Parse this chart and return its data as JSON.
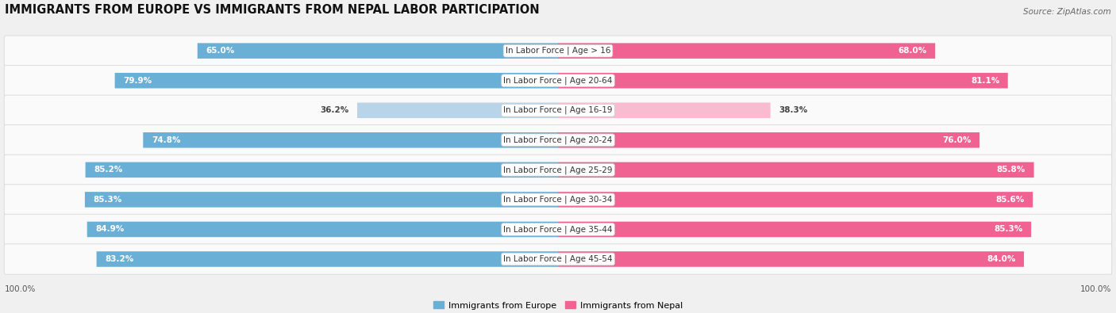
{
  "title": "IMMIGRANTS FROM EUROPE VS IMMIGRANTS FROM NEPAL LABOR PARTICIPATION",
  "source": "Source: ZipAtlas.com",
  "categories": [
    "In Labor Force | Age > 16",
    "In Labor Force | Age 20-64",
    "In Labor Force | Age 16-19",
    "In Labor Force | Age 20-24",
    "In Labor Force | Age 25-29",
    "In Labor Force | Age 30-34",
    "In Labor Force | Age 35-44",
    "In Labor Force | Age 45-54"
  ],
  "europe_values": [
    65.0,
    79.9,
    36.2,
    74.8,
    85.2,
    85.3,
    84.9,
    83.2
  ],
  "nepal_values": [
    68.0,
    81.1,
    38.3,
    76.0,
    85.8,
    85.6,
    85.3,
    84.0
  ],
  "europe_color": "#6aafd6",
  "nepal_color": "#f06292",
  "europe_color_light": "#b8d4e8",
  "nepal_color_light": "#f8bbd0",
  "background_color": "#f0f0f0",
  "row_bg_color": "#fafafa",
  "row_border_color": "#d8d8d8",
  "legend_europe": "Immigrants from Europe",
  "legend_nepal": "Immigrants from Nepal",
  "max_value": 100.0,
  "title_fontsize": 10.5,
  "label_fontsize": 7.5,
  "value_fontsize": 7.5,
  "footer_fontsize": 7.5,
  "source_fontsize": 7.5
}
